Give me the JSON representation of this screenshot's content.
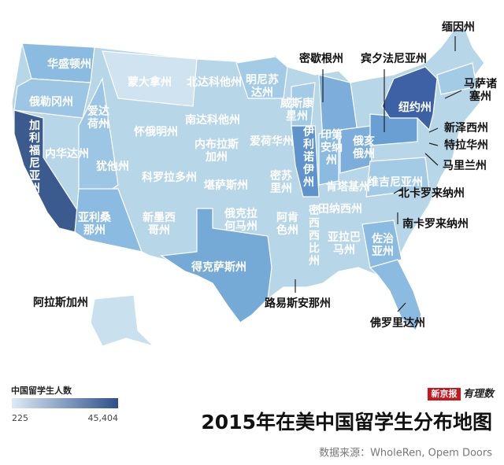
{
  "title": "2015年在美中国留学生分布地图",
  "source": "数据来源：WholeRen, Opem Doors",
  "logo": {
    "brand": "新京报",
    "column": "有理数"
  },
  "legend": {
    "label": "中国留学生人数",
    "min": "225",
    "max": "45,404"
  },
  "states": [
    "华盛顿州",
    "俄勒冈州",
    "爱达荷州",
    "蒙大拿州",
    "北达科他州",
    "明尼苏达州",
    "南达科他州",
    "怀俄明州",
    "威斯康星州",
    "内华达州",
    "犹他州",
    "内布拉斯加州",
    "爱荷华州",
    "伊利诺伊州",
    "印第安纳州",
    "俄亥俄州",
    "科罗拉多州",
    "堪萨斯州",
    "密苏里州",
    "肯塔基州",
    "维吉尼亚州",
    "加利福尼亚州",
    "亚利桑那州",
    "新墨西哥州",
    "俄克拉何马州",
    "阿肯色州",
    "田纳西州",
    "密西西比州",
    "亚拉巴马州",
    "佐治亚州",
    "得克萨斯州",
    "纽约州",
    "密歇根州",
    "宾夕法尼亚州",
    "缅因州",
    "马萨诸塞州",
    "新泽西州",
    "特拉华州",
    "马里兰州",
    "北卡罗来纳州",
    "南卡罗来纳州",
    "路易斯安那州",
    "佛罗里达州",
    "阿拉斯加州"
  ]
}
